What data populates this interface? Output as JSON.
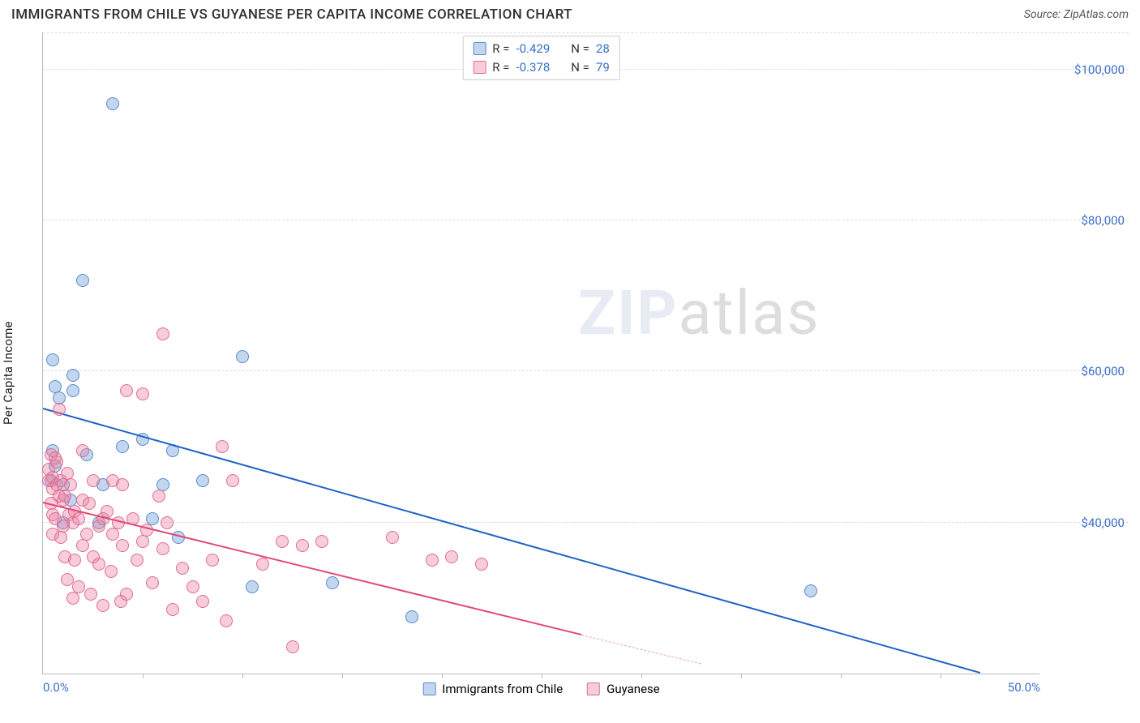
{
  "title": "IMMIGRANTS FROM CHILE VS GUYANESE PER CAPITA INCOME CORRELATION CHART",
  "source": "Source: ZipAtlas.com",
  "watermark": {
    "zip": "ZIP",
    "atlas": "atlas"
  },
  "y_axis_label": "Per Capita Income",
  "chart": {
    "type": "scatter",
    "x_min": 0.0,
    "x_max": 50.0,
    "y_min": 20000,
    "y_max": 105000,
    "x_tick_labels": [
      {
        "v": 0.0,
        "label": "0.0%"
      },
      {
        "v": 50.0,
        "label": "50.0%"
      }
    ],
    "x_minor_ticks": [
      5,
      10,
      15,
      20,
      25,
      30,
      35,
      40,
      45
    ],
    "y_grid": [
      {
        "v": 40000,
        "label": "$40,000"
      },
      {
        "v": 60000,
        "label": "$60,000"
      },
      {
        "v": 80000,
        "label": "$80,000"
      },
      {
        "v": 100000,
        "label": "$100,000"
      }
    ],
    "marker_radius": 8,
    "marker_stroke_width": 1.4,
    "series": [
      {
        "key": "chile",
        "label": "Immigrants from Chile",
        "fill": "rgba(120,165,220,0.45)",
        "stroke": "#5a8bcf",
        "R_label": "R =",
        "R_value": "-0.429",
        "N_label": "N =",
        "N_value": "28",
        "trend": {
          "x1": 0.0,
          "y1": 55000,
          "x2": 47.0,
          "y2": 20000,
          "color": "#1e63c4",
          "width": 2.2,
          "dash": "solid"
        },
        "trend_ext": null,
        "points": [
          [
            0.5,
            61500
          ],
          [
            0.6,
            58000
          ],
          [
            0.8,
            56500
          ],
          [
            0.5,
            49500
          ],
          [
            0.6,
            47500
          ],
          [
            1.0,
            45000
          ],
          [
            1.5,
            57500
          ],
          [
            1.5,
            59500
          ],
          [
            2.0,
            72000
          ],
          [
            3.5,
            95500
          ],
          [
            2.2,
            49000
          ],
          [
            3.0,
            45000
          ],
          [
            4.0,
            50000
          ],
          [
            5.0,
            51000
          ],
          [
            5.5,
            40500
          ],
          [
            6.0,
            45000
          ],
          [
            6.5,
            49500
          ],
          [
            6.8,
            38000
          ],
          [
            8.0,
            45500
          ],
          [
            10.0,
            62000
          ],
          [
            10.5,
            31500
          ],
          [
            14.5,
            32000
          ],
          [
            18.5,
            27500
          ],
          [
            38.5,
            31000
          ],
          [
            0.4,
            45500
          ],
          [
            1.0,
            40000
          ],
          [
            1.4,
            43000
          ],
          [
            2.8,
            40000
          ]
        ]
      },
      {
        "key": "guyanese",
        "label": "Guyanese",
        "fill": "rgba(235,130,160,0.40)",
        "stroke": "#e26b93",
        "R_label": "R =",
        "R_value": "-0.378",
        "N_label": "N =",
        "N_value": "79",
        "trend": {
          "x1": 0.0,
          "y1": 42500,
          "x2": 27.0,
          "y2": 25000,
          "color": "#e04a7a",
          "width": 2.0,
          "dash": "solid"
        },
        "trend_ext": {
          "x1": 27.0,
          "y1": 25000,
          "x2": 33.0,
          "y2": 21200,
          "color": "#e9a6bd",
          "width": 1.4,
          "dash": "dashed"
        },
        "points": [
          [
            0.3,
            47000
          ],
          [
            0.3,
            45500
          ],
          [
            0.4,
            49000
          ],
          [
            0.4,
            42500
          ],
          [
            0.5,
            46000
          ],
          [
            0.5,
            44500
          ],
          [
            0.5,
            41000
          ],
          [
            0.5,
            38500
          ],
          [
            0.6,
            48500
          ],
          [
            0.6,
            40500
          ],
          [
            0.7,
            48000
          ],
          [
            0.7,
            45000
          ],
          [
            0.8,
            55000
          ],
          [
            0.8,
            43500
          ],
          [
            0.9,
            45500
          ],
          [
            0.9,
            38000
          ],
          [
            1.0,
            43000
          ],
          [
            1.0,
            39500
          ],
          [
            1.1,
            43500
          ],
          [
            1.1,
            35500
          ],
          [
            1.2,
            46500
          ],
          [
            1.2,
            32500
          ],
          [
            1.3,
            41000
          ],
          [
            1.4,
            45000
          ],
          [
            1.5,
            40000
          ],
          [
            1.5,
            30000
          ],
          [
            1.6,
            41500
          ],
          [
            1.6,
            35000
          ],
          [
            1.8,
            40500
          ],
          [
            1.8,
            31500
          ],
          [
            2.0,
            49500
          ],
          [
            2.0,
            43000
          ],
          [
            2.0,
            37000
          ],
          [
            2.2,
            38500
          ],
          [
            2.3,
            42500
          ],
          [
            2.4,
            30500
          ],
          [
            2.5,
            45500
          ],
          [
            2.5,
            35500
          ],
          [
            2.8,
            39500
          ],
          [
            2.8,
            34500
          ],
          [
            3.0,
            40500
          ],
          [
            3.0,
            29000
          ],
          [
            3.2,
            41500
          ],
          [
            3.4,
            33500
          ],
          [
            3.5,
            38500
          ],
          [
            3.5,
            45500
          ],
          [
            3.8,
            40000
          ],
          [
            3.9,
            29500
          ],
          [
            4.0,
            45000
          ],
          [
            4.0,
            37000
          ],
          [
            4.2,
            57500
          ],
          [
            4.2,
            30500
          ],
          [
            4.5,
            40500
          ],
          [
            4.7,
            35000
          ],
          [
            5.0,
            57000
          ],
          [
            5.0,
            37500
          ],
          [
            5.2,
            39000
          ],
          [
            5.5,
            32000
          ],
          [
            5.8,
            43500
          ],
          [
            6.0,
            36500
          ],
          [
            6.0,
            65000
          ],
          [
            6.2,
            40000
          ],
          [
            6.5,
            28500
          ],
          [
            7.0,
            34000
          ],
          [
            7.5,
            31500
          ],
          [
            8.0,
            29500
          ],
          [
            8.5,
            35000
          ],
          [
            9.0,
            50000
          ],
          [
            9.2,
            27000
          ],
          [
            9.5,
            45500
          ],
          [
            11.0,
            34500
          ],
          [
            12.0,
            37500
          ],
          [
            12.5,
            23500
          ],
          [
            13.0,
            37000
          ],
          [
            14.0,
            37500
          ],
          [
            17.5,
            38000
          ],
          [
            19.5,
            35000
          ],
          [
            20.5,
            35500
          ],
          [
            22.0,
            34500
          ]
        ]
      }
    ]
  },
  "colors": {
    "title": "#303030",
    "axis_label_color": "#3b6fc9",
    "grid": "#dcdcdc",
    "border": "#bbb"
  }
}
